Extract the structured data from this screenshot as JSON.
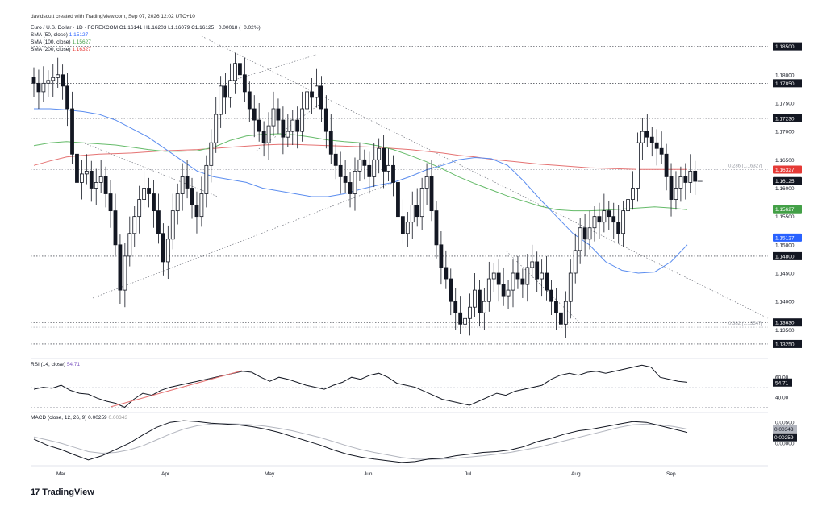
{
  "header": {
    "author_line": "davidscutt created with TradingView.com, Sep 07, 2026 12:02 UTC+10",
    "symbol_line": "Euro / U.S. Dollar · 1D · FOREXCOM  O1.16141  H1.16203  L1.16079  C1.16125  −0.00018 (−0.02%)",
    "sma": [
      {
        "label": "SMA (50, close)",
        "value": "1.15127",
        "color": "#2962ff"
      },
      {
        "label": "SMA (100, close)",
        "value": "1.15627",
        "color": "#43a047"
      },
      {
        "label": "SMA (200, close)",
        "value": "1.16327",
        "color": "#e53935"
      }
    ]
  },
  "chart_data": {
    "type": "candlestick",
    "price_axis_labels": [
      "1.18000",
      "1.17500",
      "1.17000",
      "1.16500",
      "1.16000",
      "1.15500",
      "1.15000",
      "1.14500",
      "1.14000",
      "1.13500"
    ],
    "price_axis_range": [
      1.1305,
      1.1885
    ],
    "horizontal_levels": [
      {
        "label": "1.18500",
        "value": 1.185
      },
      {
        "label": "1.17850",
        "value": 1.1785
      },
      {
        "label": "1.17230",
        "value": 1.1723
      },
      {
        "label": "1.14800",
        "value": 1.148
      },
      {
        "label": "1.13630",
        "value": 1.1363
      },
      {
        "label": "1.13250",
        "value": 1.1325
      }
    ],
    "fib_levels": [
      {
        "label": "0.236 (1.16327)",
        "value": 1.16327
      },
      {
        "label": "0.382 (1.13547)",
        "value": 1.13547
      }
    ],
    "badges": [
      {
        "label": "1.16327",
        "value": 1.16327,
        "color": "#e53935"
      },
      {
        "label": "1.16125",
        "value": 1.16125,
        "color": "#131722"
      },
      {
        "label": "1.15627",
        "value": 1.15627,
        "color": "#43a047"
      },
      {
        "label": "1.15127",
        "value": 1.15127,
        "color": "#2962ff"
      }
    ],
    "x_axis_labels": [
      "Mar",
      "Apr",
      "May",
      "Jun",
      "Jul",
      "Aug",
      "Sep"
    ],
    "close": [
      1.1785,
      1.177,
      1.1785,
      1.179,
      1.1795,
      1.18,
      1.178,
      1.174,
      1.166,
      1.161,
      1.1625,
      1.163,
      1.16,
      1.161,
      1.162,
      1.159,
      1.156,
      1.15,
      1.142,
      1.148,
      1.152,
      1.155,
      1.158,
      1.16,
      1.159,
      1.156,
      1.152,
      1.147,
      1.151,
      1.156,
      1.159,
      1.162,
      1.16,
      1.157,
      1.155,
      1.159,
      1.164,
      1.168,
      1.173,
      1.178,
      1.176,
      1.179,
      1.182,
      1.18,
      1.177,
      1.174,
      1.172,
      1.17,
      1.168,
      1.171,
      1.174,
      1.172,
      1.169,
      1.17,
      1.172,
      1.17,
      1.174,
      1.177,
      1.176,
      1.178,
      1.174,
      1.17,
      1.166,
      1.164,
      1.162,
      1.161,
      1.159,
      1.163,
      1.165,
      1.164,
      1.162,
      1.165,
      1.167,
      1.163,
      1.164,
      1.161,
      1.155,
      1.152,
      1.154,
      1.157,
      1.155,
      1.16,
      1.162,
      1.156,
      1.15,
      1.146,
      1.144,
      1.14,
      1.138,
      1.136,
      1.137,
      1.139,
      1.142,
      1.138,
      1.14,
      1.144,
      1.145,
      1.143,
      1.141,
      1.142,
      1.145,
      1.144,
      1.143,
      1.146,
      1.147,
      1.144,
      1.145,
      1.142,
      1.14,
      1.138,
      1.136,
      1.14,
      1.145,
      1.149,
      1.153,
      1.151,
      1.153,
      1.155,
      1.154,
      1.156,
      1.155,
      1.154,
      1.152,
      1.156,
      1.158,
      1.16,
      1.168,
      1.17,
      1.169,
      1.168,
      1.167,
      1.166,
      1.162,
      1.158,
      1.16,
      1.162,
      1.161,
      1.163,
      1.1612
    ],
    "sma50_approx": [
      1.174,
      1.174,
      1.1738,
      1.1735,
      1.173,
      1.172,
      1.1705,
      1.169,
      1.167,
      1.165,
      1.163,
      1.162,
      1.1615,
      1.161,
      1.16,
      1.1595,
      1.159,
      1.1585,
      1.1585,
      1.159,
      1.1598,
      1.1605,
      1.161,
      1.162,
      1.1632,
      1.164,
      1.165,
      1.1654,
      1.1652,
      1.164,
      1.1612,
      1.158,
      1.155,
      1.152,
      1.15,
      1.147,
      1.1455,
      1.145,
      1.1452,
      1.147,
      1.15
    ],
    "sma100_approx": [
      1.1675,
      1.168,
      1.1682,
      1.168,
      1.1678,
      1.1676,
      1.1672,
      1.1668,
      1.1665,
      1.1665,
      1.1666,
      1.1672,
      1.1684,
      1.1692,
      1.1695,
      1.1696,
      1.1694,
      1.169,
      1.1685,
      1.1682,
      1.168,
      1.1675,
      1.1668,
      1.1658,
      1.1647,
      1.1634,
      1.162,
      1.1608,
      1.1597,
      1.1586,
      1.1577,
      1.1568,
      1.1562,
      1.156,
      1.156,
      1.1561,
      1.1563,
      1.1565,
      1.1567,
      1.1565,
      1.1562
    ],
    "sma200_approx": [
      1.164,
      1.1648,
      1.1655,
      1.1658,
      1.166,
      1.1661,
      1.1662,
      1.1664,
      1.1666,
      1.1667,
      1.1668,
      1.167,
      1.1672,
      1.1674,
      1.1676,
      1.1677,
      1.1677,
      1.1676,
      1.1675,
      1.1674,
      1.1673,
      1.1672,
      1.167,
      1.1668,
      1.1665,
      1.1662,
      1.1658,
      1.1655,
      1.1651,
      1.1648,
      1.1645,
      1.1642,
      1.164,
      1.1638,
      1.1636,
      1.1635,
      1.1634,
      1.1633,
      1.1633,
      1.1633,
      1.1633
    ],
    "rsi": {
      "label": "RSI (14, close)",
      "value": "54.71",
      "axis_labels": [
        "60.00",
        "40.00"
      ],
      "levels": [
        70,
        30
      ],
      "range": [
        28,
        73
      ],
      "series_approx": [
        48,
        50,
        49,
        52,
        47,
        44,
        43,
        39,
        36,
        34,
        30,
        38,
        44,
        42,
        47,
        50,
        52,
        54,
        56,
        58,
        60,
        62,
        64,
        66,
        65,
        60,
        56,
        60,
        58,
        55,
        52,
        50,
        48,
        52,
        55,
        60,
        58,
        62,
        64,
        60,
        54,
        52,
        50,
        46,
        42,
        38,
        36,
        34,
        32,
        36,
        40,
        44,
        42,
        46,
        48,
        50,
        52,
        58,
        62,
        64,
        62,
        65,
        66,
        64,
        66,
        68,
        70,
        72,
        70,
        60,
        58,
        56,
        55
      ]
    },
    "macd": {
      "label": "MACD (close, 12, 26, 9)",
      "value_macd": "0.00259",
      "value_signal": "0.00343",
      "axis_labels": [
        "0.00500",
        "0.00000"
      ],
      "range": [
        -0.005,
        0.0062
      ],
      "macd_series": [
        0.001,
        -0.0005,
        -0.0015,
        -0.0028,
        -0.004,
        -0.003,
        -0.0015,
        0.0,
        0.002,
        0.0038,
        0.005,
        0.0054,
        0.0052,
        0.0048,
        0.0046,
        0.0044,
        0.004,
        0.0034,
        0.0026,
        0.0016,
        0.0006,
        -0.0004,
        -0.0016,
        -0.0026,
        -0.0033,
        -0.0038,
        -0.0042,
        -0.0046,
        -0.0044,
        -0.0038,
        -0.0036,
        -0.003,
        -0.0026,
        -0.0022,
        -0.002,
        -0.0016,
        -0.0008,
        0.0004,
        0.0012,
        0.0022,
        0.003,
        0.0034,
        0.004,
        0.0046,
        0.0052,
        0.005,
        0.0042,
        0.0034,
        0.0026
      ],
      "signal_series": [
        0.0015,
        0.0008,
        0.0,
        -0.001,
        -0.002,
        -0.0024,
        -0.0022,
        -0.0016,
        -0.0006,
        0.0008,
        0.0022,
        0.0034,
        0.0042,
        0.0046,
        0.0047,
        0.0046,
        0.0044,
        0.0041,
        0.0036,
        0.003,
        0.0022,
        0.0014,
        0.0004,
        -0.0006,
        -0.0015,
        -0.0022,
        -0.0028,
        -0.0034,
        -0.0038,
        -0.0039,
        -0.0038,
        -0.0036,
        -0.0033,
        -0.003,
        -0.0026,
        -0.0022,
        -0.0016,
        -0.001,
        -0.0002,
        0.0006,
        0.0014,
        0.0022,
        0.003,
        0.0038,
        0.0044,
        0.0046,
        0.0044,
        0.004,
        0.0034
      ]
    }
  },
  "brand": {
    "logo_text": "TradingView",
    "logo_mark": "17"
  }
}
